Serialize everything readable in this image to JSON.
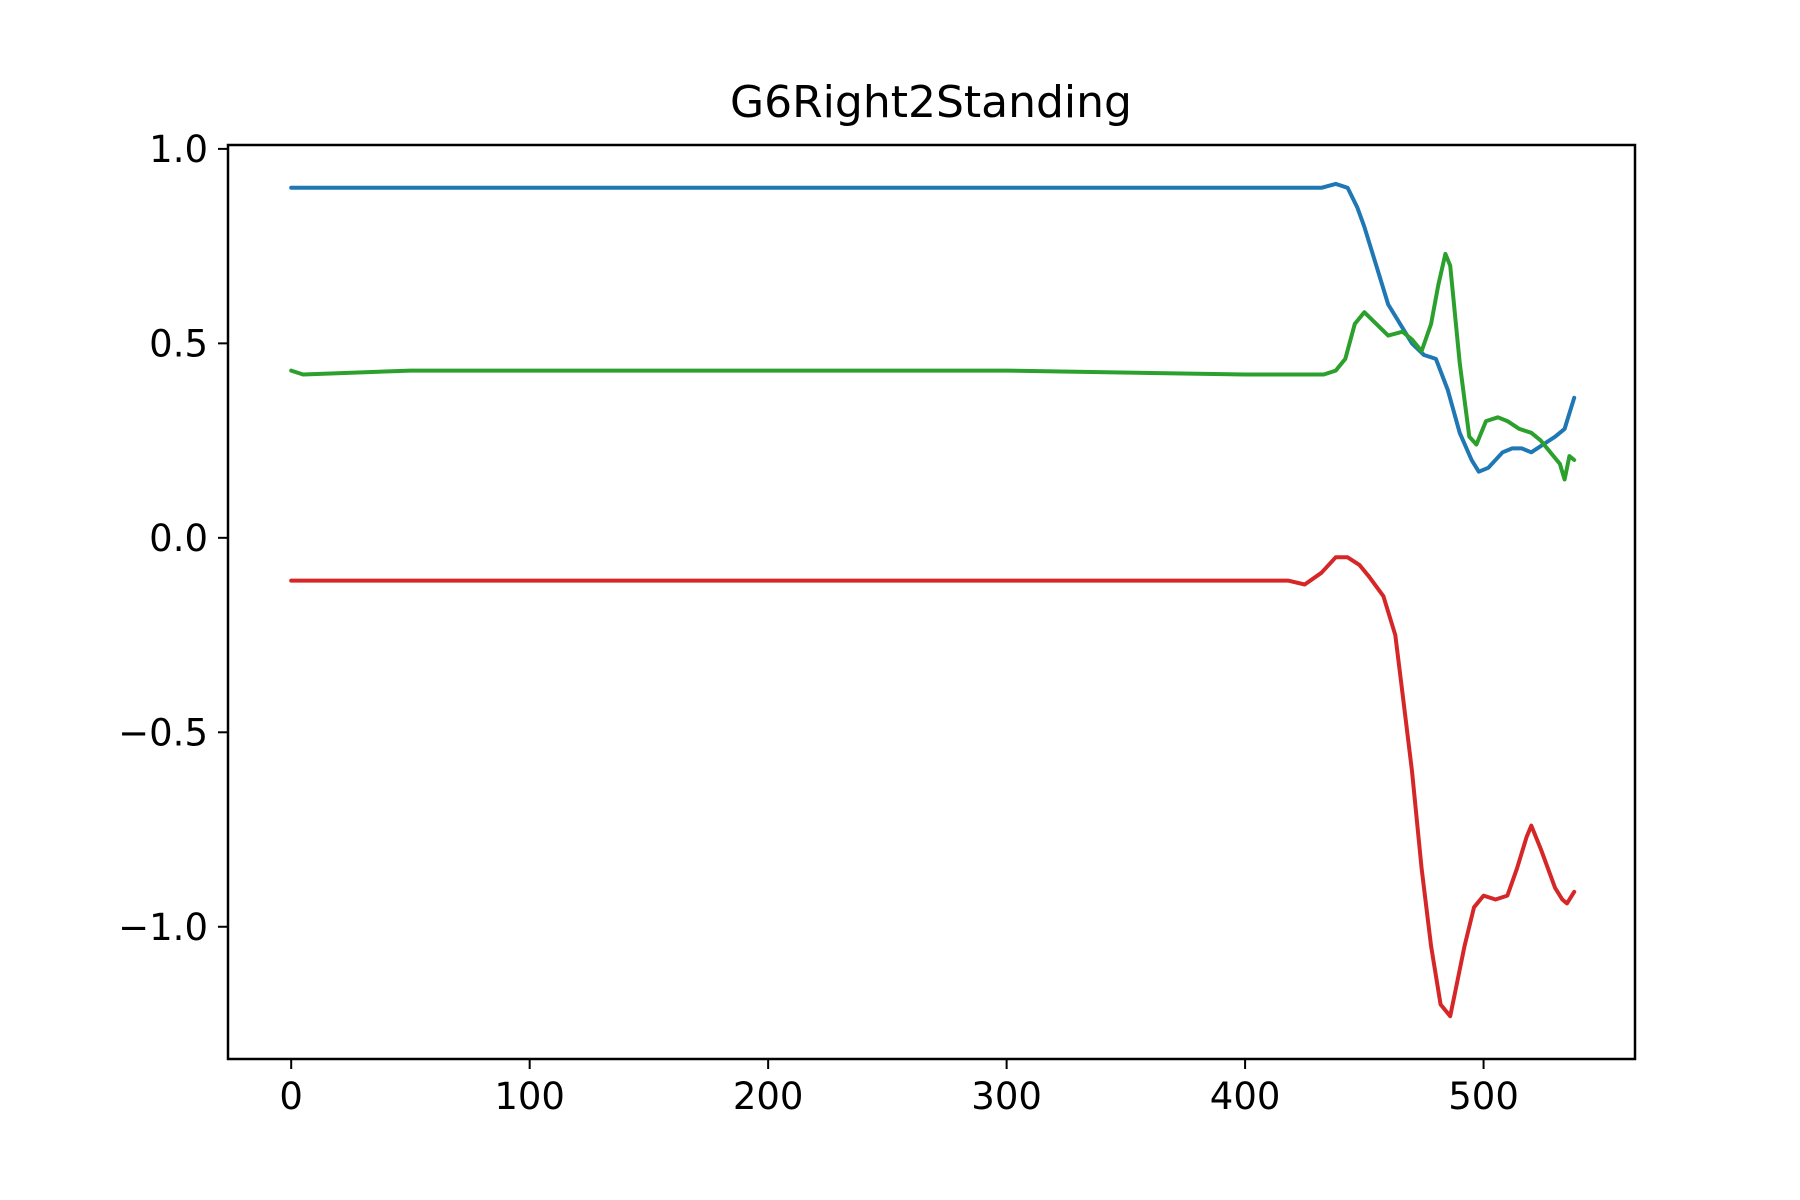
{
  "chart_data": {
    "type": "line",
    "title": "G6Right2Standing",
    "xlabel": "",
    "ylabel": "",
    "xlim": [
      -26.5,
      563.5
    ],
    "ylim": [
      -1.34,
      1.01
    ],
    "xticks": [
      0,
      100,
      200,
      300,
      400,
      500
    ],
    "yticks": [
      1.0,
      0.5,
      0.0,
      -0.5,
      -1.0
    ],
    "xtick_labels": [
      "0",
      "100",
      "200",
      "300",
      "400",
      "500"
    ],
    "ytick_labels": [
      "1.0",
      "0.5",
      "0.0",
      "−0.5",
      "−1.0"
    ],
    "grid": false,
    "legend": "none",
    "series": [
      {
        "color": "#1f77b4",
        "x": [
          0,
          20,
          40,
          100,
          200,
          300,
          400,
          425,
          432,
          438,
          443,
          447,
          450,
          455,
          460,
          465,
          470,
          475,
          480,
          485,
          490,
          495,
          498,
          502,
          508,
          512,
          516,
          520,
          525,
          530,
          534,
          538
        ],
        "y": [
          0.9,
          0.9,
          0.9,
          0.9,
          0.9,
          0.9,
          0.9,
          0.9,
          0.9,
          0.91,
          0.9,
          0.85,
          0.8,
          0.7,
          0.6,
          0.55,
          0.5,
          0.47,
          0.46,
          0.38,
          0.27,
          0.2,
          0.17,
          0.18,
          0.22,
          0.23,
          0.23,
          0.22,
          0.24,
          0.26,
          0.28,
          0.36
        ]
      },
      {
        "color": "#2ca02c",
        "x": [
          0,
          5,
          50,
          100,
          200,
          300,
          400,
          420,
          428,
          433,
          438,
          442,
          446,
          450,
          455,
          460,
          466,
          470,
          474,
          478,
          481,
          484,
          486,
          490,
          494,
          497,
          501,
          506,
          510,
          515,
          520,
          524,
          528,
          532,
          534,
          536,
          538
        ],
        "y": [
          0.43,
          0.42,
          0.43,
          0.43,
          0.43,
          0.43,
          0.42,
          0.42,
          0.42,
          0.42,
          0.43,
          0.46,
          0.55,
          0.58,
          0.55,
          0.52,
          0.53,
          0.51,
          0.48,
          0.55,
          0.65,
          0.73,
          0.7,
          0.45,
          0.26,
          0.24,
          0.3,
          0.31,
          0.3,
          0.28,
          0.27,
          0.25,
          0.22,
          0.19,
          0.15,
          0.21,
          0.2
        ]
      },
      {
        "color": "#d62728",
        "x": [
          0,
          50,
          100,
          200,
          300,
          400,
          418,
          425,
          432,
          438,
          443,
          448,
          452,
          458,
          463,
          466,
          470,
          474,
          478,
          482,
          486,
          488,
          492,
          496,
          500,
          505,
          510,
          514,
          518,
          520,
          524,
          530,
          533,
          535,
          538
        ],
        "y": [
          -0.11,
          -0.11,
          -0.11,
          -0.11,
          -0.11,
          -0.11,
          -0.11,
          -0.12,
          -0.09,
          -0.05,
          -0.05,
          -0.07,
          -0.1,
          -0.15,
          -0.25,
          -0.4,
          -0.6,
          -0.85,
          -1.05,
          -1.2,
          -1.23,
          -1.17,
          -1.05,
          -0.95,
          -0.92,
          -0.93,
          -0.92,
          -0.85,
          -0.77,
          -0.74,
          -0.8,
          -0.9,
          -0.93,
          -0.94,
          -0.91
        ]
      }
    ]
  }
}
